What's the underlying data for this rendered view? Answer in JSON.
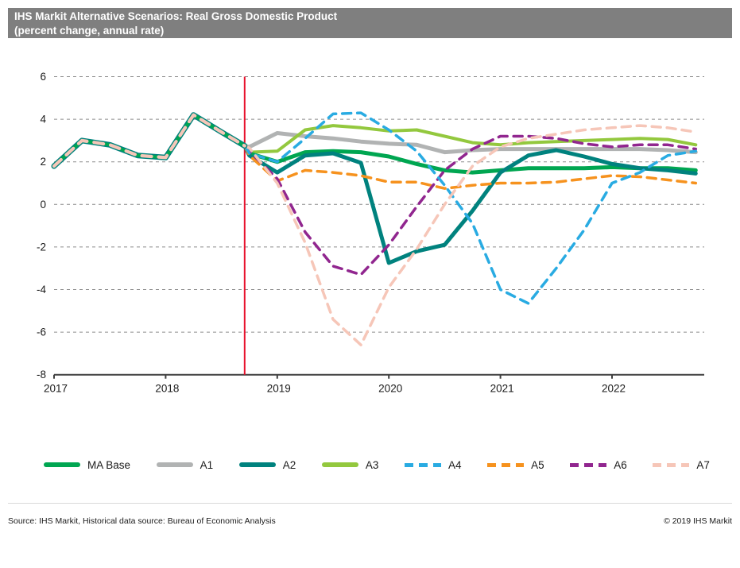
{
  "title": {
    "line1": "IHS Markit Alternative Scenarios: Real Gross Domestic Product",
    "line2": "(percent change, annual rate)"
  },
  "footer": {
    "source": "Source: IHS Markit, Historical data source: Bureau of Economic Analysis",
    "copyright": "© 2019 IHS Markit"
  },
  "colors": {
    "titlebar_bg": "#7f7f7f",
    "titlebar_text": "#ffffff",
    "grid": "#8c8c8c",
    "axis": "#3f3f3f",
    "forecast_divider": "#e8112d",
    "history_outline": "#00827e",
    "history_core": "#00a651",
    "history_dash": "#f6c6b8"
  },
  "chart_data": {
    "type": "line",
    "title": "IHS Markit Alternative Scenarios: Real Gross Domestic Product (percent change, annual rate)",
    "xlabel": "",
    "ylabel": "",
    "ylim": [
      -8,
      6
    ],
    "xlim": [
      2016.87,
      2022.9
    ],
    "grid": "horizontal-dashed",
    "legend_position": "bottom",
    "y_ticks": [
      6,
      4,
      2,
      0,
      -2,
      -4,
      -6,
      -8
    ],
    "x_ticks": [
      {
        "value": 2017,
        "label": "2017"
      },
      {
        "value": 2018,
        "label": "2018"
      },
      {
        "value": 2019,
        "label": "2019"
      },
      {
        "value": 2020,
        "label": "2020"
      },
      {
        "value": 2021,
        "label": "2021"
      },
      {
        "value": 2022,
        "label": "2022"
      }
    ],
    "forecast_divider_x": 2018.708,
    "history": {
      "note": "shared historical line for all scenarios, quarterly",
      "x_start": 2017.0,
      "x_step": 0.25,
      "values": [
        1.8,
        3.0,
        2.8,
        2.3,
        2.2,
        4.2,
        3.4
      ]
    },
    "fan_origin": {
      "x": 2018.708,
      "y": 2.75
    },
    "series_x_start": 2018.75,
    "series_x_step": 0.25,
    "series": [
      {
        "name": "MA Base",
        "color": "#00a651",
        "dashed": false,
        "width": 5,
        "values": [
          2.4,
          2.0,
          2.45,
          2.5,
          2.45,
          2.25,
          1.9,
          1.6,
          1.5,
          1.6,
          1.7,
          1.7,
          1.7,
          1.75,
          1.7,
          1.7,
          1.6
        ]
      },
      {
        "name": "A1",
        "color": "#b1b3b3",
        "dashed": false,
        "width": 5,
        "values": [
          2.7,
          3.35,
          3.2,
          3.1,
          2.95,
          2.85,
          2.8,
          2.45,
          2.55,
          2.6,
          2.6,
          2.6,
          2.6,
          2.6,
          2.6,
          2.55,
          2.45
        ]
      },
      {
        "name": "A2",
        "color": "#00827e",
        "dashed": false,
        "width": 5,
        "values": [
          2.3,
          1.5,
          2.3,
          2.4,
          1.95,
          -2.75,
          -2.2,
          -1.9,
          -0.3,
          1.5,
          2.3,
          2.55,
          2.25,
          1.9,
          1.7,
          1.6,
          1.45
        ]
      },
      {
        "name": "A3",
        "color": "#93c83e",
        "dashed": false,
        "width": 4,
        "values": [
          2.45,
          2.5,
          3.5,
          3.7,
          3.6,
          3.45,
          3.5,
          3.2,
          2.9,
          2.8,
          2.9,
          2.95,
          3.0,
          3.05,
          3.1,
          3.05,
          2.8
        ]
      },
      {
        "name": "A4",
        "color": "#29abe2",
        "dashed": true,
        "width": 3.5,
        "values": [
          2.4,
          2.0,
          3.1,
          4.25,
          4.3,
          3.5,
          2.5,
          0.9,
          -0.9,
          -4.0,
          -4.65,
          -3.0,
          -1.2,
          1.0,
          1.5,
          2.3,
          2.5
        ]
      },
      {
        "name": "A5",
        "color": "#f6921e",
        "dashed": true,
        "width": 3.5,
        "values": [
          2.3,
          1.1,
          1.6,
          1.5,
          1.35,
          1.05,
          1.05,
          0.75,
          0.9,
          1.0,
          1.0,
          1.05,
          1.2,
          1.35,
          1.3,
          1.15,
          1.0
        ]
      },
      {
        "name": "A6",
        "color": "#91268f",
        "dashed": true,
        "width": 3.5,
        "values": [
          2.5,
          1.2,
          -1.3,
          -2.9,
          -3.3,
          -1.9,
          -0.1,
          1.6,
          2.6,
          3.2,
          3.2,
          3.1,
          2.85,
          2.7,
          2.8,
          2.8,
          2.6
        ]
      },
      {
        "name": "A7",
        "color": "#f6c6b8",
        "dashed": true,
        "width": 3.5,
        "values": [
          2.65,
          1.0,
          -1.8,
          -5.4,
          -6.6,
          -3.9,
          -2.1,
          0.0,
          1.8,
          2.7,
          3.1,
          3.3,
          3.5,
          3.6,
          3.7,
          3.6,
          3.4
        ]
      }
    ]
  }
}
